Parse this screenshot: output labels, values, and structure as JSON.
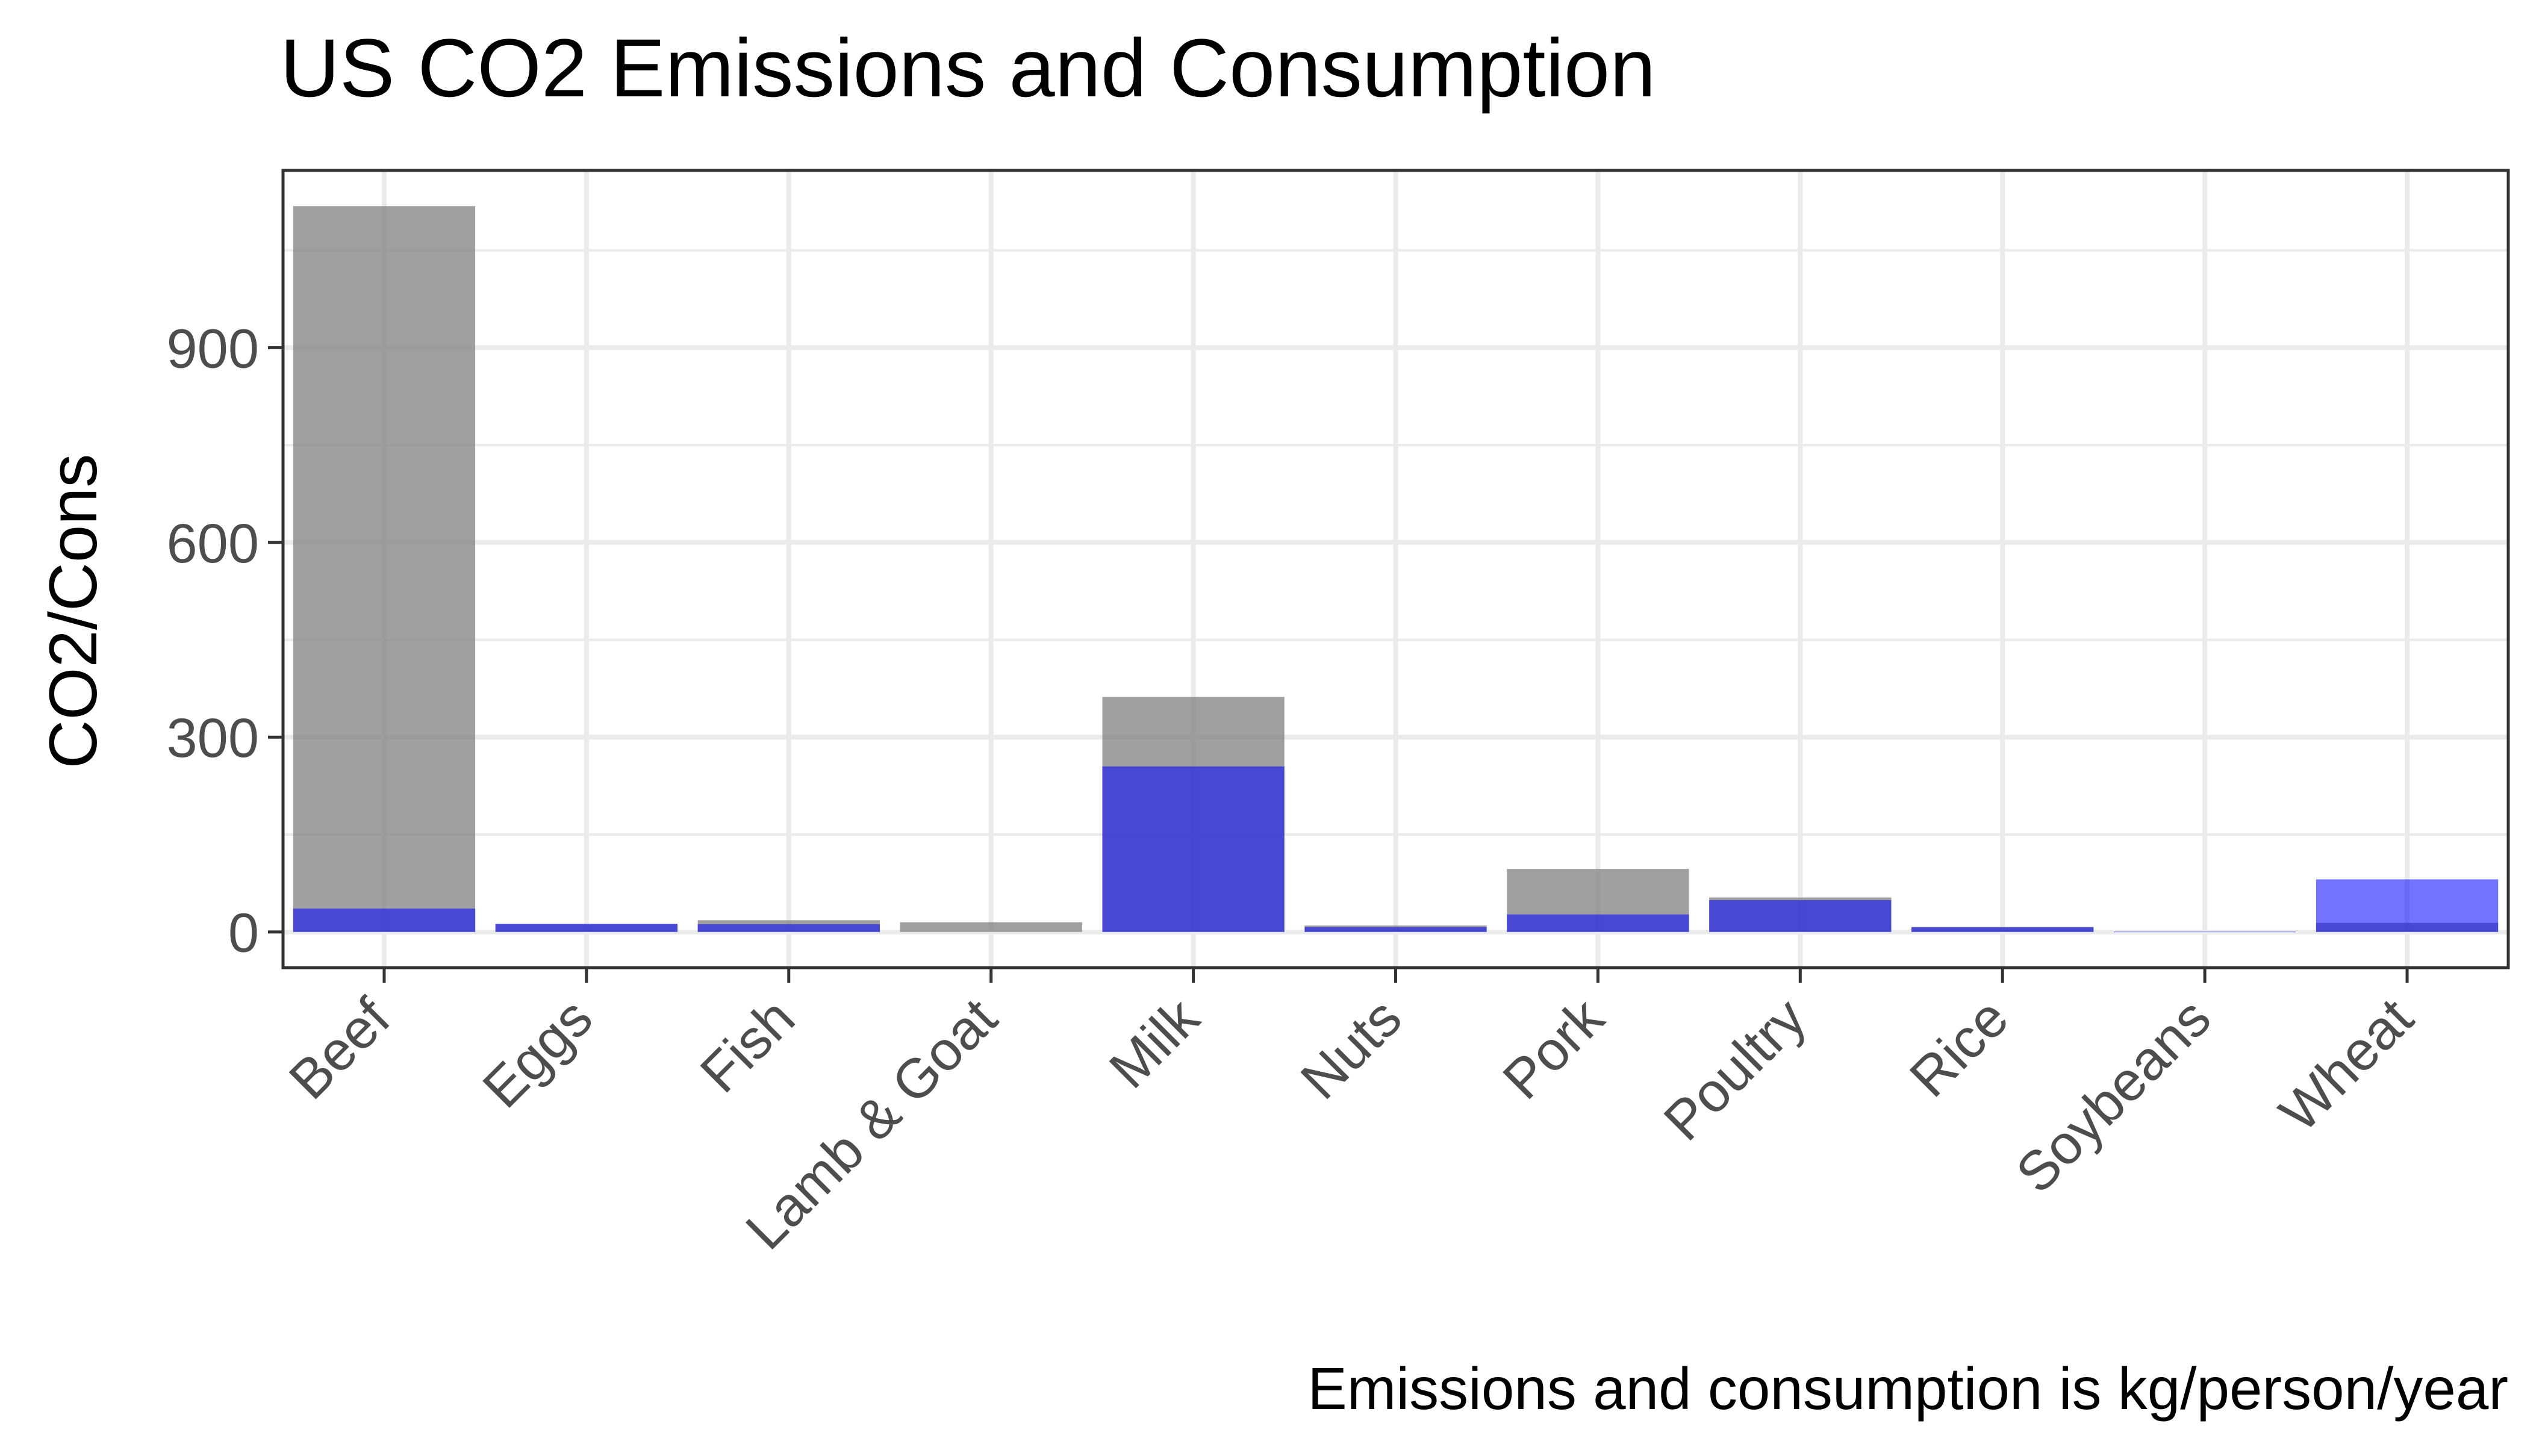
{
  "chart_data": {
    "type": "bar",
    "title": "US CO2 Emissions and Consumption",
    "xlabel": "",
    "ylabel": "CO2/Cons",
    "caption": "Emissions and consumption is kg/person/year",
    "categories": [
      "Beef",
      "Eggs",
      "Fish",
      "Lamb & Goat",
      "Milk",
      "Nuts",
      "Pork",
      "Poultry",
      "Rice",
      "Soybeans",
      "Wheat"
    ],
    "series": [
      {
        "values": [
          1118,
          12,
          18,
          15,
          362,
          10,
          97,
          53,
          8,
          0,
          14
        ],
        "color": "#808080",
        "opacity": 0.75,
        "draw_order": 1
      },
      {
        "values": [
          36,
          12.5,
          12,
          0,
          255,
          7.5,
          27,
          49,
          7,
          0.5,
          81
        ],
        "color": "#0000FF",
        "opacity": 0.55,
        "draw_order": 2
      }
    ],
    "yticks": [
      0,
      300,
      600,
      900
    ],
    "ylim": [
      -55,
      1173
    ],
    "grid": true,
    "legend": "none",
    "theme": "bw"
  }
}
